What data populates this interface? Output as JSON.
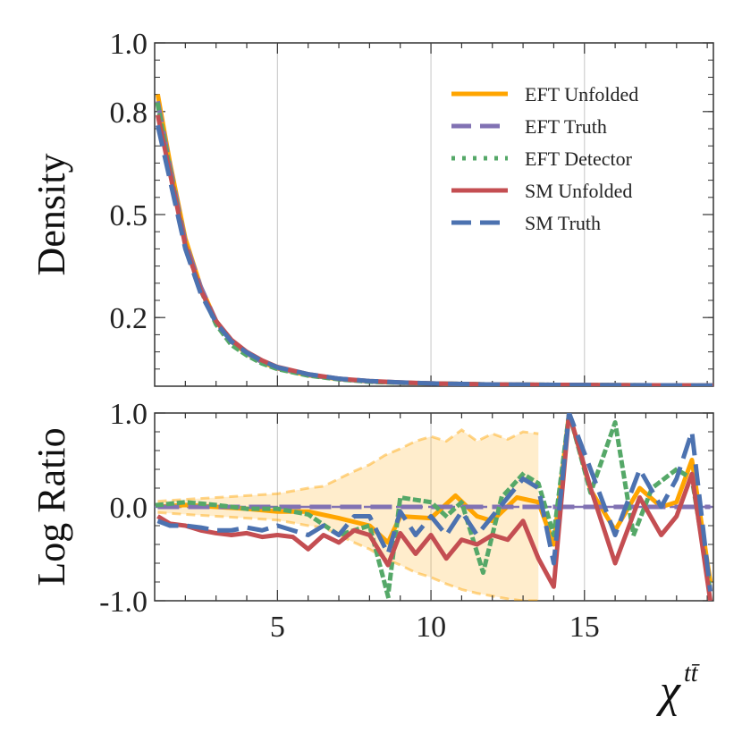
{
  "chart_data": [
    {
      "panel": "top",
      "type": "line",
      "ylabel": "Density",
      "xlabel": "",
      "xlim": [
        1,
        19.2
      ],
      "ylim": [
        0,
        1.0
      ],
      "x_ticks": [
        5,
        10,
        15
      ],
      "y_ticks": [
        0.2,
        0.5,
        0.8,
        1.0
      ],
      "y_tick_labels": [
        "0.2",
        "0.5",
        "0.8",
        "1.0"
      ],
      "grid": "vertical at x ticks",
      "legend_position": "top-right",
      "series": [
        {
          "name": "EFT Unfolded",
          "color": "#ffa500",
          "style": "solid",
          "x": [
            1.1,
            1.5,
            2,
            2.5,
            3,
            3.5,
            4,
            4.5,
            5,
            6,
            7,
            8,
            9,
            10,
            12,
            14,
            16,
            19.2
          ],
          "y": [
            0.85,
            0.65,
            0.43,
            0.29,
            0.19,
            0.13,
            0.095,
            0.07,
            0.052,
            0.032,
            0.021,
            0.014,
            0.01,
            0.008,
            0.005,
            0.004,
            0.003,
            0.002
          ]
        },
        {
          "name": "EFT Truth",
          "color": "#8172b3",
          "style": "dashed",
          "x": [
            1.1,
            1.5,
            2,
            2.5,
            3,
            3.5,
            4,
            4.5,
            5,
            6,
            7,
            8,
            9,
            10,
            12,
            14,
            16,
            19.2
          ],
          "y": [
            0.83,
            0.64,
            0.42,
            0.29,
            0.19,
            0.13,
            0.096,
            0.07,
            0.053,
            0.033,
            0.021,
            0.014,
            0.01,
            0.008,
            0.005,
            0.004,
            0.003,
            0.002
          ]
        },
        {
          "name": "EFT Detector",
          "color": "#55a868",
          "style": "dotted",
          "x": [
            1.1,
            1.5,
            2,
            2.5,
            3,
            3.5,
            4,
            4.5,
            5,
            6,
            7,
            8,
            9,
            10,
            12,
            14,
            16,
            19.2
          ],
          "y": [
            0.82,
            0.63,
            0.41,
            0.28,
            0.18,
            0.12,
            0.09,
            0.066,
            0.05,
            0.031,
            0.02,
            0.013,
            0.01,
            0.008,
            0.005,
            0.004,
            0.003,
            0.002
          ]
        },
        {
          "name": "SM Unfolded",
          "color": "#c44e52",
          "style": "solid",
          "x": [
            1.1,
            1.5,
            2,
            2.5,
            3,
            3.5,
            4,
            4.5,
            5,
            6,
            7,
            8,
            9,
            10,
            12,
            14,
            16,
            19.2
          ],
          "y": [
            0.79,
            0.62,
            0.41,
            0.28,
            0.19,
            0.135,
            0.1,
            0.075,
            0.056,
            0.035,
            0.022,
            0.015,
            0.011,
            0.008,
            0.005,
            0.004,
            0.003,
            0.002
          ]
        },
        {
          "name": "SM Truth",
          "color": "#4c72b0",
          "style": "dashed",
          "x": [
            1.1,
            1.5,
            2,
            2.5,
            3,
            3.5,
            4,
            4.5,
            5,
            6,
            7,
            8,
            9,
            10,
            12,
            14,
            16,
            19.2
          ],
          "y": [
            0.76,
            0.6,
            0.4,
            0.27,
            0.185,
            0.13,
            0.098,
            0.073,
            0.055,
            0.035,
            0.022,
            0.015,
            0.011,
            0.008,
            0.005,
            0.004,
            0.003,
            0.002
          ]
        }
      ]
    },
    {
      "panel": "bottom",
      "type": "line",
      "ylabel": "Log Ratio",
      "xlabel": "χ",
      "xlabel_superscript": "tt̄",
      "xlim": [
        1,
        19.2
      ],
      "ylim": [
        -1.0,
        1.0
      ],
      "x_ticks": [
        5,
        10,
        15
      ],
      "x_tick_labels": [
        "5",
        "10",
        "15"
      ],
      "y_ticks": [
        -1.0,
        0.0,
        1.0
      ],
      "y_tick_labels": [
        "-1.0",
        "0.0",
        "1.0"
      ],
      "reference_line": 0.0,
      "band": {
        "name": "EFT Unfolded uncertainty",
        "color": "#ffa500",
        "x": [
          1.1,
          2,
          3,
          4,
          5,
          6,
          6.5,
          7,
          7.5,
          8,
          8.5,
          9,
          9.5,
          10,
          10.5,
          11,
          11.5,
          12,
          12.5,
          13,
          13.5
        ],
        "lower": [
          -0.06,
          -0.08,
          -0.1,
          -0.12,
          -0.14,
          -0.2,
          -0.22,
          -0.3,
          -0.38,
          -0.45,
          -0.55,
          -0.62,
          -0.7,
          -0.75,
          -0.82,
          -0.88,
          -0.92,
          -0.95,
          -0.98,
          -1.0,
          -1.0
        ],
        "upper": [
          0.06,
          0.08,
          0.1,
          0.12,
          0.14,
          0.2,
          0.22,
          0.3,
          0.38,
          0.45,
          0.55,
          0.62,
          0.7,
          0.75,
          0.7,
          0.82,
          0.7,
          0.78,
          0.72,
          0.8,
          0.78
        ]
      },
      "series": [
        {
          "name": "EFT Unfolded",
          "color": "#ffa500",
          "style": "solid",
          "x": [
            1.1,
            2,
            3,
            4,
            5,
            6,
            7,
            8,
            8.6,
            9,
            10,
            10.8,
            11.5,
            12,
            12.8,
            13.5,
            14,
            14.5,
            15.2,
            16,
            16.8,
            17.5,
            18,
            18.5,
            19.1
          ],
          "y": [
            0.0,
            0.02,
            0.0,
            -0.02,
            -0.05,
            -0.05,
            -0.12,
            -0.2,
            -0.38,
            -0.1,
            -0.12,
            0.12,
            -0.1,
            -0.15,
            0.1,
            0.05,
            -0.4,
            1.0,
            0.18,
            -0.25,
            0.2,
            0.0,
            0.05,
            0.5,
            -0.8
          ]
        },
        {
          "name": "EFT Truth",
          "color": "#8172b3",
          "style": "dashed",
          "x": [
            1.1,
            19.1
          ],
          "y": [
            0.0,
            0.0
          ]
        },
        {
          "name": "EFT Detector",
          "color": "#55a868",
          "style": "dotted",
          "x": [
            1.1,
            2,
            3,
            4,
            5,
            6,
            7,
            8,
            8.6,
            9,
            10,
            10.5,
            11,
            11.7,
            12.3,
            13,
            13.5,
            14,
            14.5,
            15.2,
            16,
            16.6,
            17.2,
            18,
            18.5,
            19.1
          ],
          "y": [
            0.02,
            0.05,
            0.02,
            -0.02,
            -0.02,
            -0.08,
            -0.3,
            -0.2,
            -0.95,
            0.1,
            0.05,
            -0.1,
            0.05,
            -0.7,
            0.1,
            0.35,
            0.25,
            -0.3,
            1.0,
            0.15,
            0.9,
            -0.3,
            0.2,
            0.4,
            0.3,
            -0.9
          ]
        },
        {
          "name": "SM Unfolded",
          "color": "#c44e52",
          "style": "solid",
          "x": [
            1.1,
            1.5,
            2,
            2.5,
            3,
            3.5,
            4,
            4.5,
            5,
            5.5,
            6,
            6.5,
            7,
            7.5,
            8,
            8.6,
            9,
            9.5,
            10,
            10.5,
            11,
            11.5,
            12,
            12.5,
            13,
            13.5,
            14,
            14.5,
            15.2,
            16,
            16.8,
            17.5,
            18,
            18.5,
            19.1
          ],
          "y": [
            -0.1,
            -0.18,
            -0.2,
            -0.25,
            -0.28,
            -0.3,
            -0.28,
            -0.32,
            -0.3,
            -0.32,
            -0.45,
            -0.3,
            -0.38,
            -0.25,
            -0.3,
            -0.62,
            -0.28,
            -0.5,
            -0.3,
            -0.55,
            -0.35,
            -0.4,
            -0.3,
            -0.35,
            -0.15,
            -0.55,
            -0.85,
            1.0,
            0.2,
            -0.6,
            0.1,
            -0.3,
            -0.1,
            0.35,
            -1.0
          ]
        },
        {
          "name": "SM Truth",
          "color": "#4c72b0",
          "style": "dashed",
          "x": [
            1.1,
            1.5,
            2,
            2.5,
            3,
            3.5,
            4,
            4.5,
            5,
            5.5,
            6,
            6.5,
            7,
            7.5,
            8,
            8.6,
            9,
            9.5,
            10,
            10.5,
            11,
            11.5,
            12,
            12.5,
            13,
            13.5,
            14,
            14.5,
            15.2,
            16,
            16.8,
            17.5,
            18,
            18.5,
            19.1
          ],
          "y": [
            -0.15,
            -0.2,
            -0.2,
            -0.22,
            -0.25,
            -0.25,
            -0.22,
            -0.25,
            -0.2,
            -0.25,
            -0.3,
            -0.2,
            -0.3,
            -0.1,
            -0.1,
            -0.5,
            -0.05,
            -0.3,
            -0.1,
            -0.3,
            -0.05,
            -0.3,
            -0.1,
            0.1,
            0.3,
            0.2,
            -0.6,
            1.0,
            0.4,
            -0.3,
            0.4,
            0.0,
            0.3,
            0.8,
            -0.9
          ]
        }
      ]
    }
  ]
}
